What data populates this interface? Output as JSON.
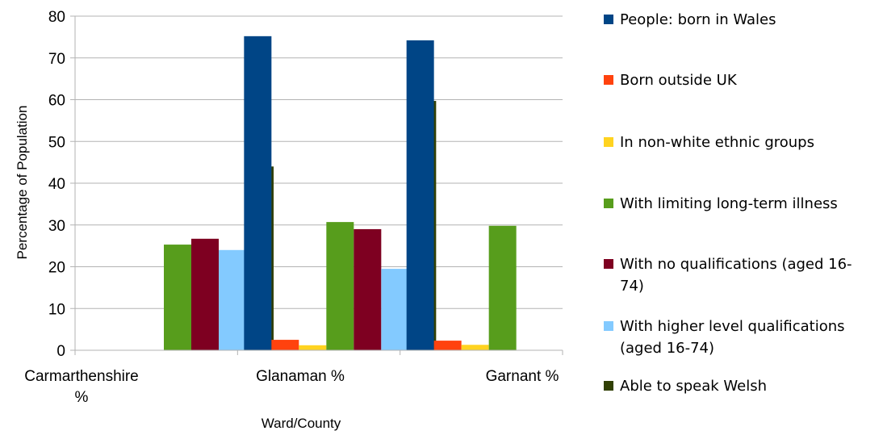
{
  "chart_data": {
    "type": "bar",
    "categories": [
      "Carmarthenshire %",
      "Glanaman %",
      "Garnant %"
    ],
    "category_lines": [
      [
        "Carmarthenshire",
        "%"
      ],
      [
        "Glanaman %"
      ],
      [
        "Garnant %"
      ]
    ],
    "xlabel": "Ward/County",
    "ylabel": "Percentage of Population",
    "ylim": [
      0,
      80
    ],
    "yticks": [
      0,
      10,
      20,
      30,
      40,
      50,
      60,
      70,
      80
    ],
    "grid": true,
    "legend_position": "right",
    "series": [
      {
        "name": "People: born in Wales",
        "color": "#004586",
        "values": [
          null,
          75.2,
          74.2
        ]
      },
      {
        "name": "Born outside UK",
        "color": "#ff420e",
        "values": [
          null,
          2.5,
          2.3
        ]
      },
      {
        "name": "In non-white ethnic groups",
        "color": "#ffd320",
        "values": [
          null,
          1.2,
          1.3
        ]
      },
      {
        "name": "With limiting long-term illness",
        "color": "#579d1c",
        "values": [
          25.3,
          30.7,
          29.8
        ]
      },
      {
        "name": "With no qualifications (aged 16-74)",
        "color": "#7e0021",
        "values": [
          26.7,
          29.0,
          null
        ]
      },
      {
        "name": "With higher level qualifications (aged 16-74)",
        "color": "#83caff",
        "values": [
          24.0,
          19.5,
          null
        ]
      },
      {
        "name": "Able to speak Welsh",
        "color": "#314004",
        "values": [
          44.0,
          59.7,
          null
        ]
      }
    ]
  },
  "legend": {
    "items": [
      {
        "lines": [
          "People: born in Wales"
        ]
      },
      {
        "lines": [
          "Born outside UK"
        ]
      },
      {
        "lines": [
          "In non-white ethnic groups"
        ]
      },
      {
        "lines": [
          "With limiting long-term illness"
        ]
      },
      {
        "lines": [
          "With no qualifications (aged 16-",
          "74)"
        ]
      },
      {
        "lines": [
          "With higher level qualifications",
          "(aged 16-74)"
        ]
      },
      {
        "lines": [
          "Able to speak Welsh"
        ]
      }
    ]
  }
}
